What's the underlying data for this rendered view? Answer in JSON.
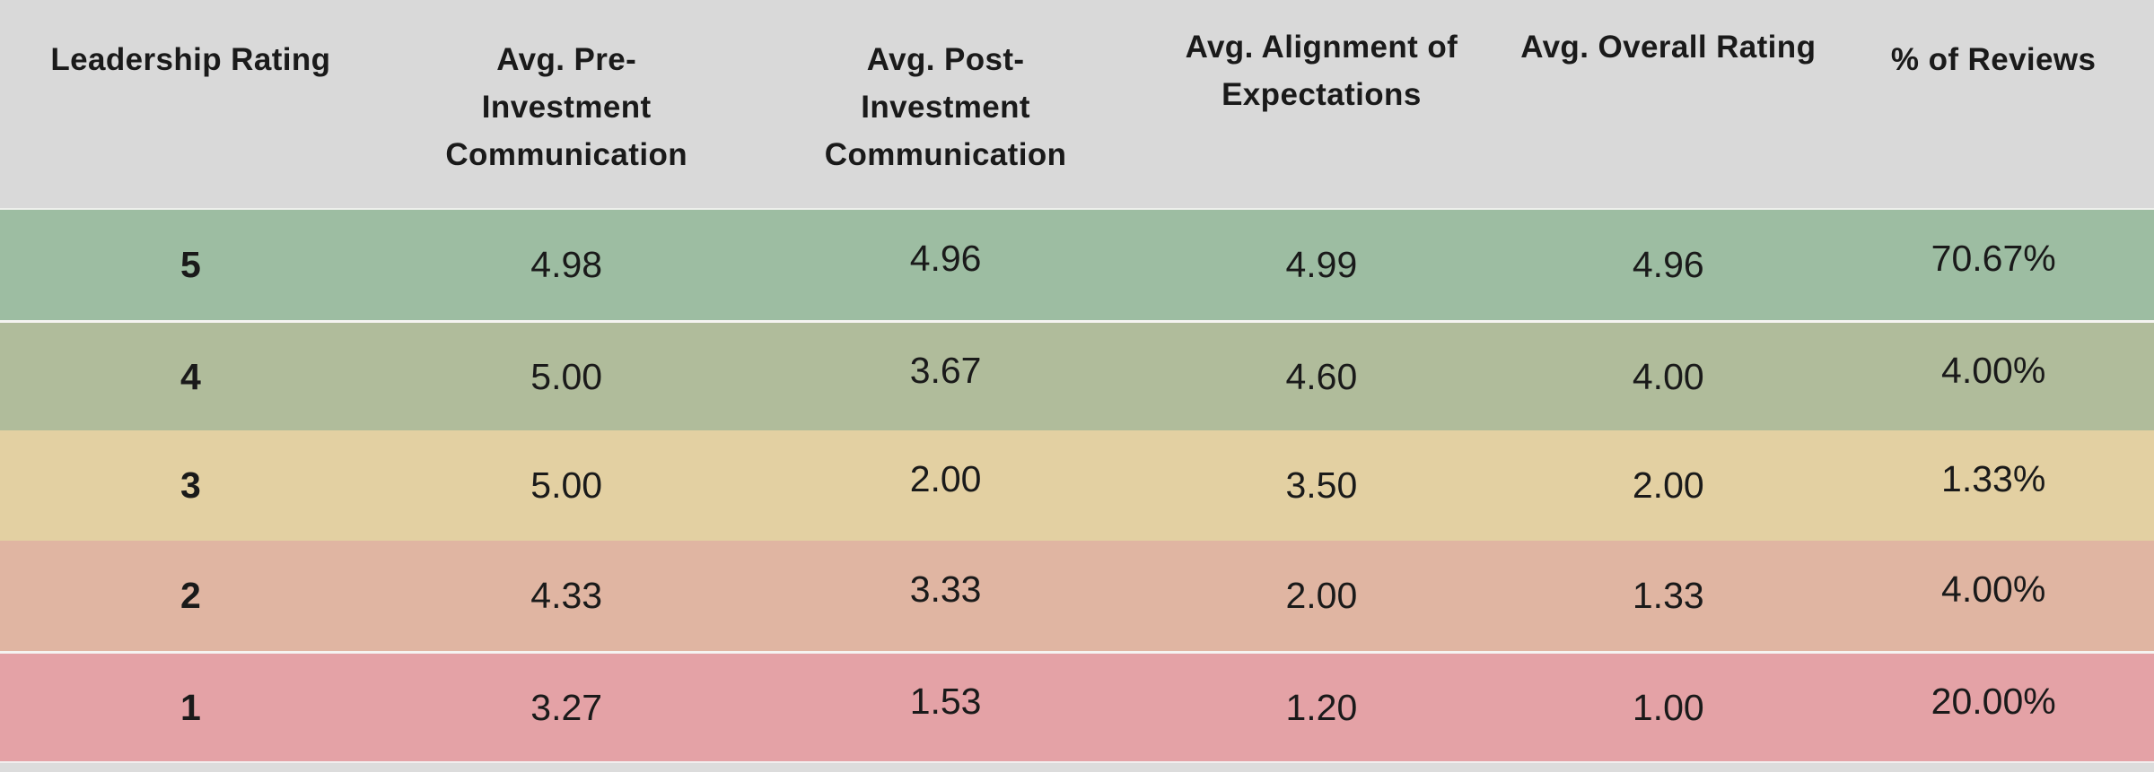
{
  "chart_data": {
    "type": "table",
    "columns": [
      "Leadership Rating",
      "Avg. Pre-Investment Communication",
      "Avg. Post-Investment Communication",
      "Avg. Alignment of Expectations",
      "Avg. Overall Rating",
      "% of Reviews"
    ],
    "rows": [
      {
        "cells": [
          "5",
          "4.98",
          "4.96",
          "4.99",
          "4.96",
          "70.67%"
        ]
      },
      {
        "cells": [
          "4",
          "5.00",
          "3.67",
          "4.60",
          "4.00",
          "4.00%"
        ]
      },
      {
        "cells": [
          "3",
          "5.00",
          "2.00",
          "3.50",
          "2.00",
          "1.33%"
        ]
      },
      {
        "cells": [
          "2",
          "4.33",
          "3.33",
          "2.00",
          "1.33",
          "4.00%"
        ]
      },
      {
        "cells": [
          "1",
          "3.27",
          "1.53",
          "1.20",
          "1.00",
          "20.00%"
        ]
      }
    ]
  },
  "colors": {
    "header_bg": "#d9d9d9",
    "row_colors": [
      "#9dbda2",
      "#b0bc9b",
      "#e3d0a2",
      "#e0b5a2",
      "#e4a2a6"
    ],
    "footer_bg": "#dcdcdc",
    "text": "#1a1a1a"
  }
}
